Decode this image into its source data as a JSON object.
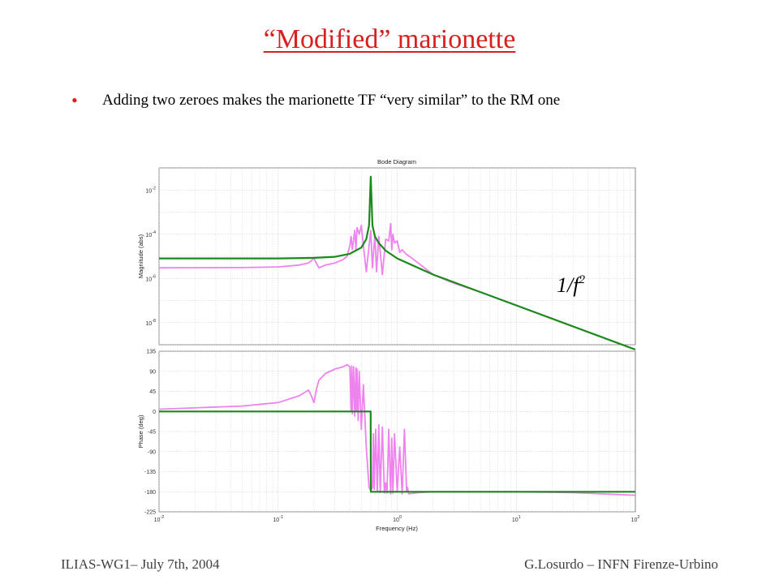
{
  "slide": {
    "title": "“Modified” marionette",
    "bullet": "Adding two zeroes makes the marionette TF “very similar” to the RM one",
    "footer_left": "ILIAS-WG1– July 7th, 2004",
    "footer_right": "G.Losurdo – INFN Firenze-Urbino"
  },
  "chart_data": {
    "type": "line",
    "title": "Bode Diagram",
    "xlabel": "Frequency (Hz)",
    "x_scale": "log",
    "xlim": [
      0.01,
      100
    ],
    "x_ticks": [
      0.01,
      0.1,
      1,
      10,
      100
    ],
    "annotation": "1/f²",
    "colors": {
      "modified": "#1a8a1a",
      "marionette": "#ee82ee"
    },
    "magnitude": {
      "ylabel": "Magnitude (abs)",
      "y_scale": "log",
      "ylim": [
        1e-09,
        0.1
      ],
      "y_ticks": [
        1e-08,
        1e-06,
        0.0001,
        0.01
      ],
      "series": [
        {
          "key": "modified",
          "x": [
            0.01,
            0.1,
            0.2,
            0.3,
            0.4,
            0.5,
            0.55,
            0.58,
            0.6,
            0.62,
            0.65,
            0.7,
            0.8,
            1,
            2,
            5,
            10,
            100
          ],
          "y": [
            8e-06,
            8e-06,
            8.5e-06,
            9.5e-06,
            1.3e-05,
            2.5e-05,
            6e-05,
            0.00025,
            0.04,
            0.00025,
            8e-05,
            4e-05,
            1.8e-05,
            8e-06,
            1.5e-06,
            2.4e-07,
            6e-08,
            6e-10
          ]
        },
        {
          "key": "marionette",
          "x": [
            0.01,
            0.05,
            0.1,
            0.15,
            0.18,
            0.2,
            0.22,
            0.25,
            0.3,
            0.35,
            0.38,
            0.4,
            0.41,
            0.42,
            0.44,
            0.45,
            0.46,
            0.48,
            0.5,
            0.52,
            0.55,
            0.6,
            0.62,
            0.65,
            0.67,
            0.7,
            0.75,
            0.8,
            0.85,
            0.88,
            0.9,
            0.92,
            0.95,
            1.0,
            1.05,
            1.1,
            1.2,
            1.3,
            1.5,
            2,
            3,
            5,
            10,
            100
          ],
          "y": [
            3e-06,
            3.1e-06,
            3.3e-06,
            4e-06,
            5e-06,
            8e-06,
            3e-06,
            4e-06,
            5e-06,
            7e-06,
            1e-05,
            3e-05,
            8e-05,
            2e-05,
            0.00015,
            2e-05,
            0.0002,
            0.0001,
            0.00025,
            3e-05,
            2e-06,
            0.00015,
            3e-06,
            0.0001,
            2e-06,
            8e-05,
            1.5e-06,
            6e-05,
            5e-05,
            0.0003,
            2e-05,
            0.0001,
            4e-05,
            5e-05,
            1.5e-05,
            2e-05,
            1.2e-05,
            9e-06,
            5e-06,
            1.5e-06,
            6e-07,
            2.4e-07,
            6e-08,
            6e-10
          ]
        }
      ]
    },
    "phase": {
      "ylabel": "Phase (deg)",
      "ylim": [
        -225,
        135
      ],
      "y_ticks": [
        135,
        90,
        45,
        0,
        -45,
        -90,
        -135,
        -180,
        -225
      ],
      "series": [
        {
          "key": "modified",
          "x": [
            0.01,
            0.599,
            0.601,
            100
          ],
          "y": [
            0,
            0,
            -180,
            -180
          ]
        },
        {
          "key": "marionette",
          "x": [
            0.01,
            0.05,
            0.1,
            0.15,
            0.18,
            0.19,
            0.2,
            0.21,
            0.22,
            0.25,
            0.3,
            0.35,
            0.38,
            0.4,
            0.41,
            0.415,
            0.42,
            0.43,
            0.44,
            0.45,
            0.455,
            0.46,
            0.47,
            0.48,
            0.5,
            0.52,
            0.55,
            0.58,
            0.6,
            0.62,
            0.63,
            0.64,
            0.66,
            0.68,
            0.7,
            0.72,
            0.75,
            0.78,
            0.8,
            0.82,
            0.85,
            0.88,
            0.9,
            0.92,
            0.95,
            1.0,
            1.05,
            1.1,
            1.15,
            1.2,
            1.22,
            1.25,
            1.3,
            1.5,
            2,
            5,
            10,
            30,
            100
          ],
          "y": [
            5,
            12,
            20,
            35,
            48,
            35,
            20,
            50,
            70,
            85,
            95,
            100,
            105,
            100,
            0,
            102,
            -5,
            100,
            -10,
            98,
            0,
            95,
            -20,
            90,
            -40,
            60,
            -80,
            -170,
            -178,
            -170,
            -50,
            -175,
            -40,
            -180,
            -30,
            -182,
            -35,
            -183,
            -160,
            -183,
            -40,
            -185,
            -60,
            -183,
            -50,
            -180,
            -80,
            -185,
            -40,
            -180,
            -170,
            -185,
            -184,
            -182,
            -180,
            -180,
            -180,
            -182,
            -188
          ]
        }
      ]
    }
  }
}
